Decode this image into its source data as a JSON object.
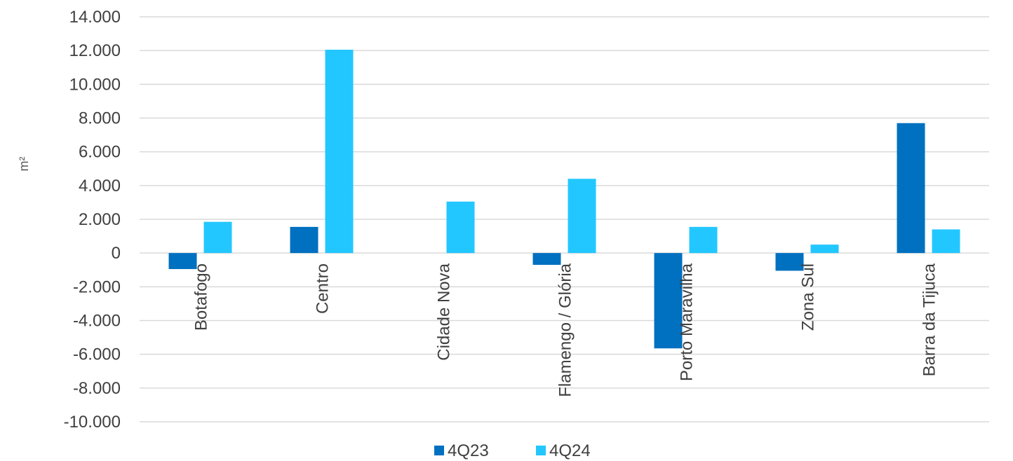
{
  "chart_data": {
    "type": "bar",
    "ylabel": "m²",
    "ylim": [
      -10000,
      14000
    ],
    "ytick_step": 2000,
    "yticks": [
      "14.000",
      "12.000",
      "10.000",
      "8.000",
      "6.000",
      "4.000",
      "2.000",
      "0",
      "-2.000",
      "-4.000",
      "-6.000",
      "-8.000",
      "-10.000"
    ],
    "categories": [
      "Botafogo",
      "Centro",
      "Cidade Nova",
      "Flamengo / Glória",
      "Porto Maravilha",
      "Zona Sul",
      "Barra da Tijuca"
    ],
    "series": [
      {
        "name": "4Q23",
        "color": "#0070C0",
        "values": [
          -950,
          1550,
          0,
          -700,
          -5650,
          -1050,
          7700
        ]
      },
      {
        "name": "4Q24",
        "color": "#23C7FF",
        "values": [
          1850,
          12050,
          3050,
          4400,
          1550,
          500,
          1400
        ]
      }
    ],
    "grid": true,
    "legend": "bottom"
  }
}
